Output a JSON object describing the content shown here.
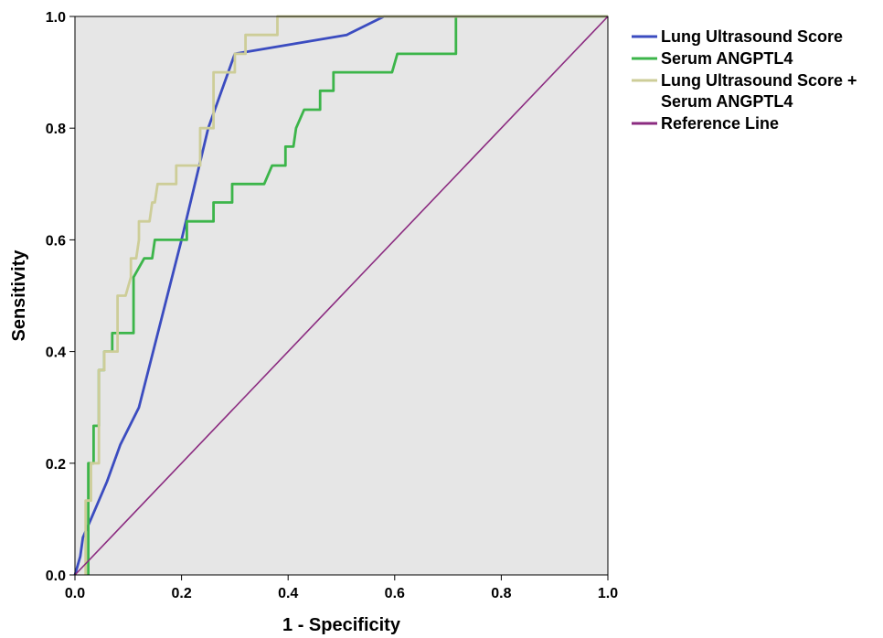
{
  "chart_data": {
    "type": "line",
    "title": "",
    "xlabel": "1 - Specificity",
    "ylabel": "Sensitivity",
    "xlim": [
      0,
      1
    ],
    "ylim": [
      0,
      1
    ],
    "xticks": [
      "0.0",
      "0.2",
      "0.4",
      "0.6",
      "0.8",
      "1.0"
    ],
    "yticks": [
      "0.0",
      "0.2",
      "0.4",
      "0.6",
      "0.8",
      "1.0"
    ],
    "grid": false,
    "plot_background": "#e6e6e6",
    "legend_position": "right",
    "series": [
      {
        "name": "Lung Ultrasound Score",
        "color": "#3b4cc0",
        "points": [
          [
            0,
            0
          ],
          [
            0.01,
            0.033
          ],
          [
            0.015,
            0.067
          ],
          [
            0.03,
            0.1
          ],
          [
            0.06,
            0.167
          ],
          [
            0.085,
            0.233
          ],
          [
            0.12,
            0.3
          ],
          [
            0.2,
            0.6
          ],
          [
            0.25,
            0.8
          ],
          [
            0.3,
            0.933
          ],
          [
            0.51,
            0.967
          ],
          [
            0.58,
            1.0
          ],
          [
            1.0,
            1.0
          ]
        ]
      },
      {
        "name": "Serum ANGPTL4",
        "color": "#3cb54a",
        "points": [
          [
            0.025,
            0
          ],
          [
            0.025,
            0.133
          ],
          [
            0.025,
            0.2
          ],
          [
            0.035,
            0.2
          ],
          [
            0.035,
            0.267
          ],
          [
            0.045,
            0.267
          ],
          [
            0.045,
            0.367
          ],
          [
            0.055,
            0.367
          ],
          [
            0.055,
            0.4
          ],
          [
            0.07,
            0.4
          ],
          [
            0.07,
            0.433
          ],
          [
            0.11,
            0.433
          ],
          [
            0.11,
            0.533
          ],
          [
            0.13,
            0.567
          ],
          [
            0.145,
            0.567
          ],
          [
            0.15,
            0.6
          ],
          [
            0.21,
            0.6
          ],
          [
            0.21,
            0.633
          ],
          [
            0.26,
            0.633
          ],
          [
            0.26,
            0.667
          ],
          [
            0.295,
            0.667
          ],
          [
            0.295,
            0.7
          ],
          [
            0.355,
            0.7
          ],
          [
            0.37,
            0.733
          ],
          [
            0.395,
            0.733
          ],
          [
            0.395,
            0.767
          ],
          [
            0.41,
            0.767
          ],
          [
            0.415,
            0.8
          ],
          [
            0.43,
            0.833
          ],
          [
            0.46,
            0.833
          ],
          [
            0.46,
            0.867
          ],
          [
            0.485,
            0.867
          ],
          [
            0.485,
            0.9
          ],
          [
            0.595,
            0.9
          ],
          [
            0.605,
            0.933
          ],
          [
            0.715,
            0.933
          ],
          [
            0.715,
            1.0
          ],
          [
            1.0,
            1.0
          ]
        ]
      },
      {
        "name": "Lung Ultrasound Score + Serum ANGPTL4",
        "legend_lines": [
          "Lung Ultrasound Score +",
          "Serum ANGPTL4"
        ],
        "color": "#cdcd98",
        "points": [
          [
            0.02,
            0
          ],
          [
            0.02,
            0.133
          ],
          [
            0.03,
            0.133
          ],
          [
            0.03,
            0.2
          ],
          [
            0.045,
            0.2
          ],
          [
            0.045,
            0.367
          ],
          [
            0.055,
            0.367
          ],
          [
            0.055,
            0.4
          ],
          [
            0.08,
            0.4
          ],
          [
            0.08,
            0.5
          ],
          [
            0.095,
            0.5
          ],
          [
            0.105,
            0.533
          ],
          [
            0.105,
            0.567
          ],
          [
            0.115,
            0.567
          ],
          [
            0.12,
            0.6
          ],
          [
            0.12,
            0.633
          ],
          [
            0.14,
            0.633
          ],
          [
            0.145,
            0.667
          ],
          [
            0.15,
            0.667
          ],
          [
            0.155,
            0.7
          ],
          [
            0.19,
            0.7
          ],
          [
            0.19,
            0.733
          ],
          [
            0.235,
            0.733
          ],
          [
            0.235,
            0.8
          ],
          [
            0.26,
            0.8
          ],
          [
            0.26,
            0.9
          ],
          [
            0.3,
            0.9
          ],
          [
            0.3,
            0.933
          ],
          [
            0.32,
            0.933
          ],
          [
            0.32,
            0.967
          ],
          [
            0.38,
            0.967
          ],
          [
            0.38,
            1.0
          ],
          [
            1.0,
            1.0
          ]
        ]
      },
      {
        "name": "Reference Line",
        "color": "#8b2b80",
        "points": [
          [
            0,
            0
          ],
          [
            1,
            1
          ]
        ]
      }
    ]
  }
}
